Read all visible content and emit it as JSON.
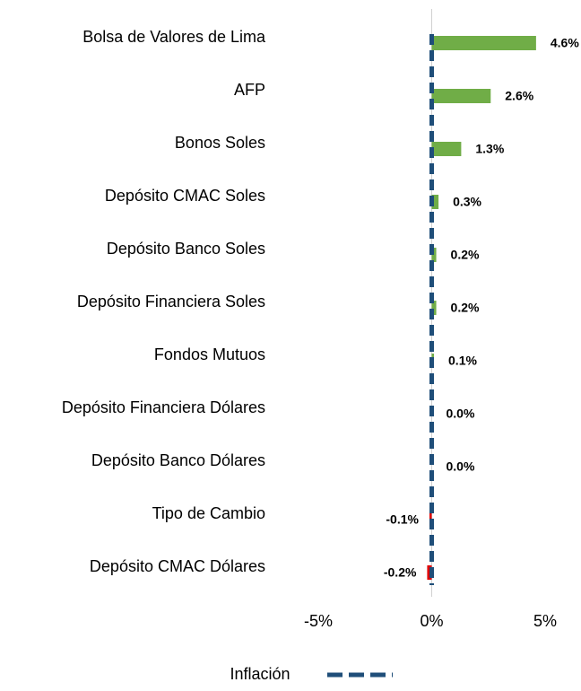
{
  "chart_data": {
    "type": "hbar",
    "categories": [
      "Bolsa de Valores de Lima",
      "AFP",
      "Bonos Soles",
      "Depósito CMAC Soles",
      "Depósito Banco Soles",
      "Depósito Financiera Soles",
      "Fondos Mutuos",
      "Depósito Financiera Dólares",
      "Depósito Banco Dólares",
      "Tipo de Cambio",
      "Depósito CMAC Dólares"
    ],
    "values": [
      4.6,
      2.6,
      1.3,
      0.3,
      0.2,
      0.2,
      0.1,
      0.0,
      0.0,
      -0.1,
      -0.2
    ],
    "value_labels": [
      "4.6%",
      "2.6%",
      "1.3%",
      "0.3%",
      "0.2%",
      "0.2%",
      "0.1%",
      "0.0%",
      "0.0%",
      "-0.1%",
      "-0.2%"
    ],
    "positive_color": "#70ad47",
    "negative_color": "#e00000",
    "xlim": [
      -5,
      5
    ],
    "xticks": [
      {
        "value": -5,
        "label": "-5%"
      },
      {
        "value": 0,
        "label": "0%"
      },
      {
        "value": 5,
        "label": "5%"
      }
    ],
    "reference_line": {
      "name": "Inflación",
      "value": 0,
      "color": "#1f4e79"
    },
    "legend": "bottom"
  }
}
